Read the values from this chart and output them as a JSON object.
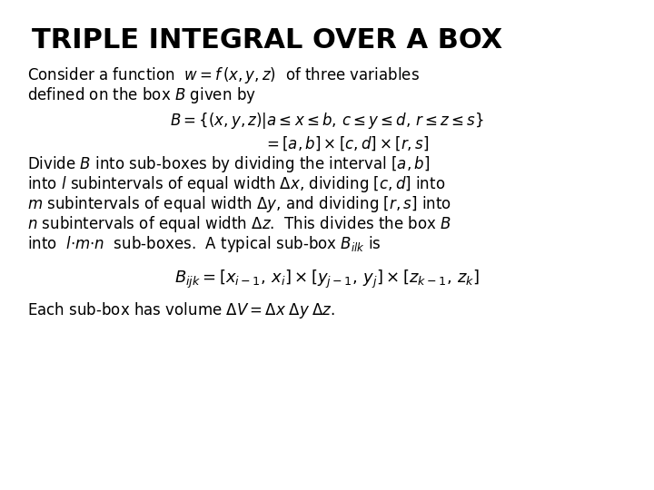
{
  "title": "TRIPLE INTEGRAL OVER A BOX",
  "background_color": "#ffffff",
  "text_color": "#000000",
  "title_fontsize": 22,
  "body_fontsize": 12,
  "math_fontsize": 12,
  "big_math_fontsize": 13
}
